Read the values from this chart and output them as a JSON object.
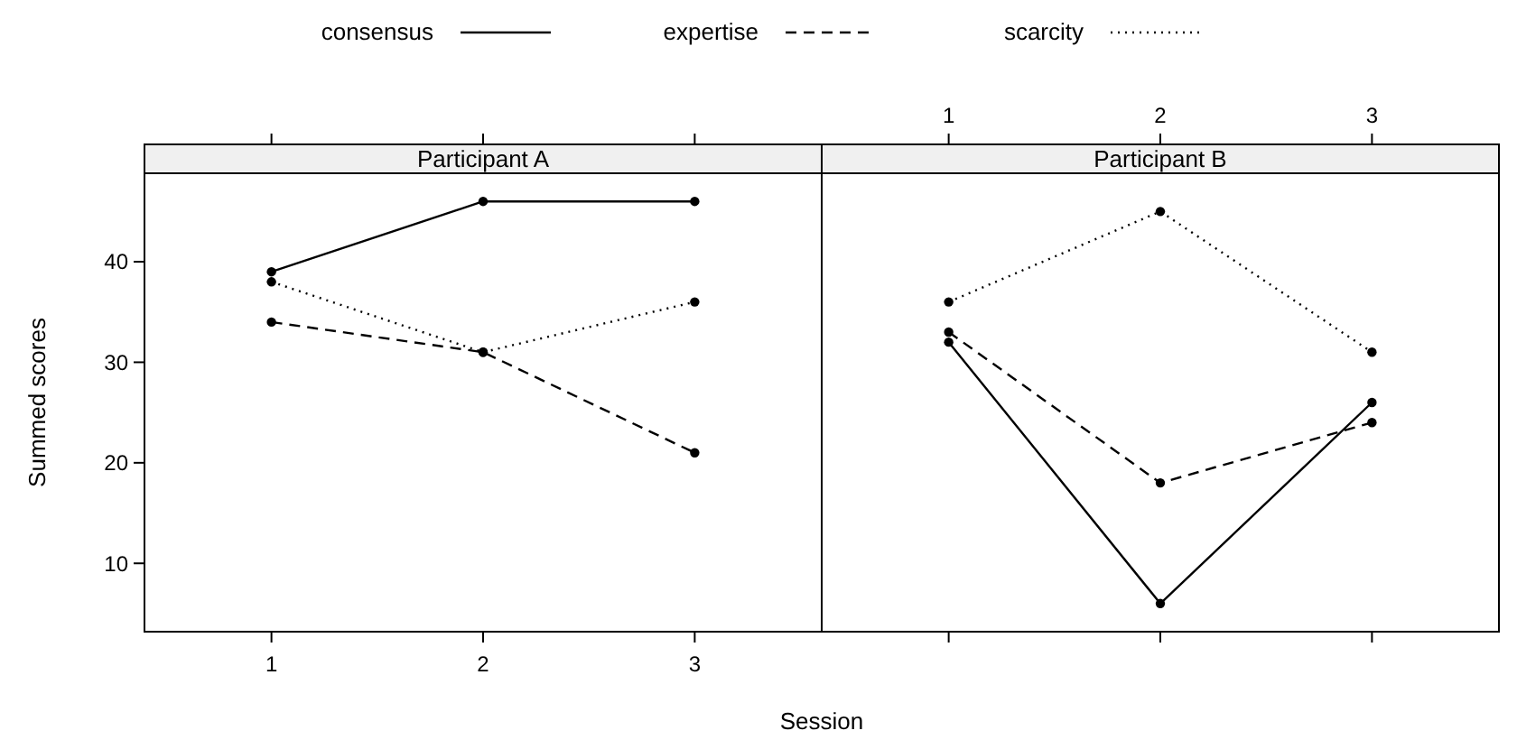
{
  "chart_data": [
    {
      "type": "line",
      "title": "Participant A",
      "xlabel": "Session",
      "ylabel": "Summed scores",
      "x": [
        1,
        2,
        3
      ],
      "xlim": [
        0.4,
        3.6
      ],
      "xticks": [
        1,
        2,
        3
      ],
      "ylim": [
        3.2,
        48.8
      ],
      "yticks": [
        10,
        20,
        30,
        40
      ],
      "marker": "circle",
      "legend": "top",
      "series": [
        {
          "name": "consensus",
          "color": "#000000",
          "line_style": "solid",
          "values": [
            39,
            46,
            46
          ]
        },
        {
          "name": "expertise",
          "color": "#000000",
          "line_style": "dashed",
          "values": [
            34,
            31,
            21
          ]
        },
        {
          "name": "scarcity",
          "color": "#000000",
          "line_style": "dotted",
          "values": [
            38,
            31,
            36
          ]
        }
      ]
    },
    {
      "type": "line",
      "title": "Participant B",
      "x": [
        1,
        2,
        3
      ],
      "xlim": [
        0.4,
        3.6
      ],
      "xticks": [
        1,
        2,
        3
      ],
      "ylim": [
        3.2,
        48.8
      ],
      "tick_labels": "x",
      "marker": "circle",
      "series": [
        {
          "color": "#000000",
          "line_style": "solid",
          "values": [
            32,
            6,
            26
          ]
        },
        {
          "color": "#000000",
          "line_style": "dashed",
          "values": [
            33,
            18,
            24
          ]
        },
        {
          "color": "#000000",
          "line_style": "dotted",
          "values": [
            36,
            45,
            31
          ]
        }
      ]
    }
  ]
}
